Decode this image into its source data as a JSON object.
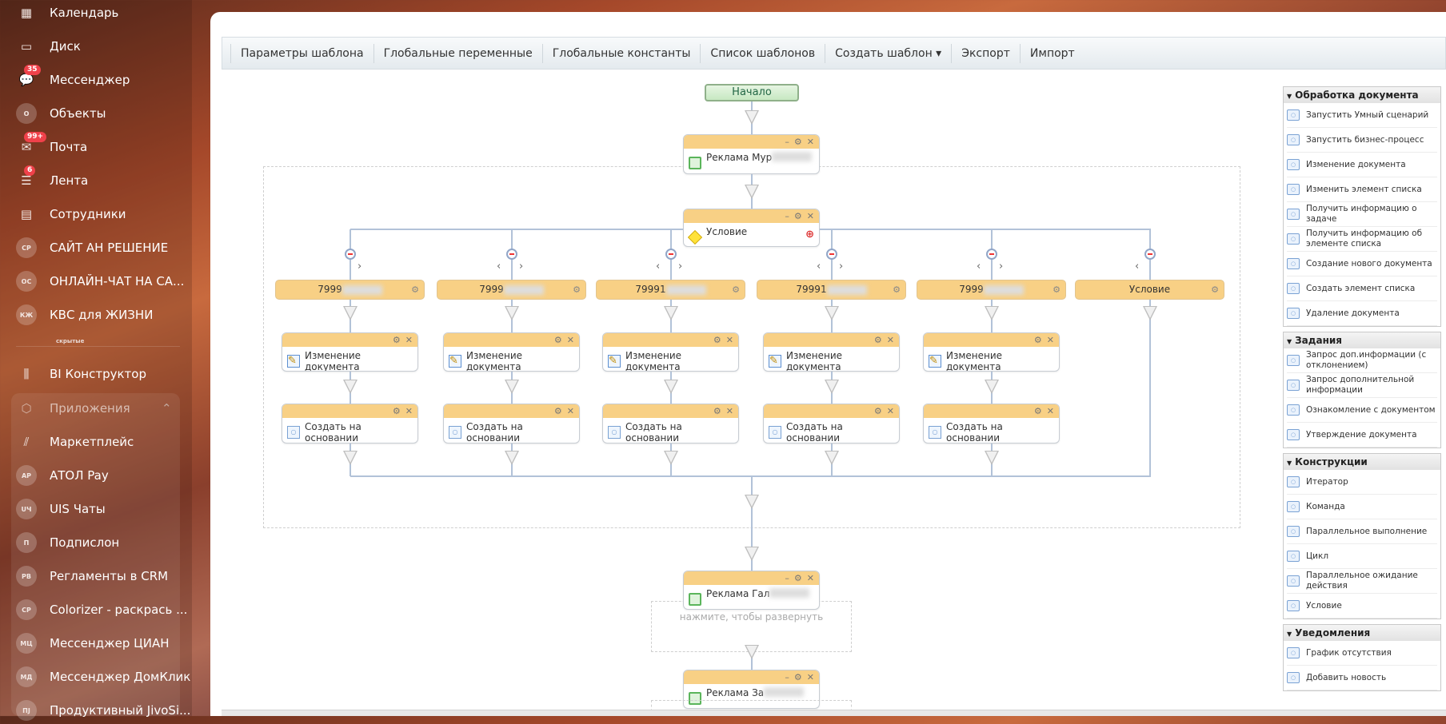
{
  "sidebar": {
    "items": [
      {
        "label": "Календарь",
        "icon": "calendar-icon",
        "glyph": "▦"
      },
      {
        "label": "Диск",
        "icon": "disk-icon",
        "glyph": "▭"
      },
      {
        "label": "Мессенджер",
        "icon": "messenger-icon",
        "glyph": "💬",
        "badge": "35"
      },
      {
        "label": "Объекты",
        "avatar": "О"
      },
      {
        "label": "Почта",
        "icon": "mail-icon",
        "glyph": "✉",
        "badge": "99+"
      },
      {
        "label": "Лента",
        "icon": "feed-icon",
        "glyph": "☰",
        "badge": "6"
      },
      {
        "label": "Сотрудники",
        "icon": "employees-icon",
        "glyph": "▤"
      },
      {
        "label": "САЙТ АН РЕШЕНИЕ",
        "avatar": "СР"
      },
      {
        "label": "ОНЛАЙН-ЧАТ НА СА...",
        "avatar": "ОС"
      },
      {
        "label": "КВС для ЖИЗНИ",
        "avatar": "КЖ"
      }
    ],
    "hidden_label": "скрытые",
    "bi": {
      "label": "BI Конструктор",
      "icon": "chart-icon",
      "glyph": "⫼"
    },
    "apps": {
      "label": "Приложения",
      "icon": "box-icon",
      "glyph": "⬡"
    },
    "app_items": [
      {
        "label": "Маркетплейс",
        "icon": "marketplace-icon",
        "glyph": "⫽"
      },
      {
        "label": "АТОЛ Pay",
        "avatar": "АР"
      },
      {
        "label": "UIS Чаты",
        "avatar": "UЧ"
      },
      {
        "label": "Подпислон",
        "avatar": "П"
      },
      {
        "label": "Регламенты в CRM",
        "avatar": "РВ"
      },
      {
        "label": "Colorizer - раскрась ...",
        "avatar": "СР"
      },
      {
        "label": "Мессенджер ЦИАН",
        "avatar": "МЦ"
      },
      {
        "label": "Мессенджер ДомКлик",
        "avatar": "МД"
      },
      {
        "label": "Продуктивный JivoSi...",
        "avatar": "ПJ"
      }
    ]
  },
  "toolbar": [
    "Параметры шаблона",
    "Глобальные переменные",
    "Глобальные константы",
    "Список шаблонов",
    "Создать шаблон ▾",
    "Экспорт",
    "Импорт"
  ],
  "flow": {
    "start": "Начало",
    "block1": "Реклама Мур",
    "condition": "Условие",
    "branches": [
      {
        "label": "7999",
        "blurred": true,
        "left": false,
        "right": true
      },
      {
        "label": "7999",
        "blurred": true,
        "left": true,
        "right": true
      },
      {
        "label": "79991",
        "blurred": true,
        "left": true,
        "right": true
      },
      {
        "label": "79991",
        "blurred": true,
        "left": true,
        "right": true
      },
      {
        "label": "7999",
        "blurred": true,
        "left": true,
        "right": true
      },
      {
        "label": "Условие",
        "blurred": false,
        "left": true,
        "right": false
      }
    ],
    "change_doc": "Изменение документа",
    "create_based": "Создать на основании",
    "block2": "Реклама Гал",
    "expand_hint": "нажмите, чтобы развернуть",
    "block3": "Реклама За"
  },
  "palette": [
    {
      "title": "Обработка документа",
      "items": [
        "Запустить Умный сценарий",
        "Запустить бизнес-процесс",
        "Изменение документа",
        "Изменить элемент списка",
        "Получить информацию о задаче",
        "Получить информацию об элементе списка",
        "Создание нового документа",
        "Создать элемент списка",
        "Удаление документа"
      ]
    },
    {
      "title": "Задания",
      "items": [
        "Запрос доп.информации (с отклонением)",
        "Запрос дополнительной информации",
        "Ознакомление с документом",
        "Утверждение документа"
      ]
    },
    {
      "title": "Конструкции",
      "items": [
        "Итератор",
        "Команда",
        "Параллельное выполнение",
        "Цикл",
        "Параллельное ожидание действия",
        "Условие"
      ]
    },
    {
      "title": "Уведомления",
      "items": [
        "График отсутствия",
        "Добавить новость"
      ]
    }
  ],
  "colors": {
    "node_header": "#f8d085",
    "connector": "#b2c2d8",
    "start_bg": "#c7e8c2"
  }
}
